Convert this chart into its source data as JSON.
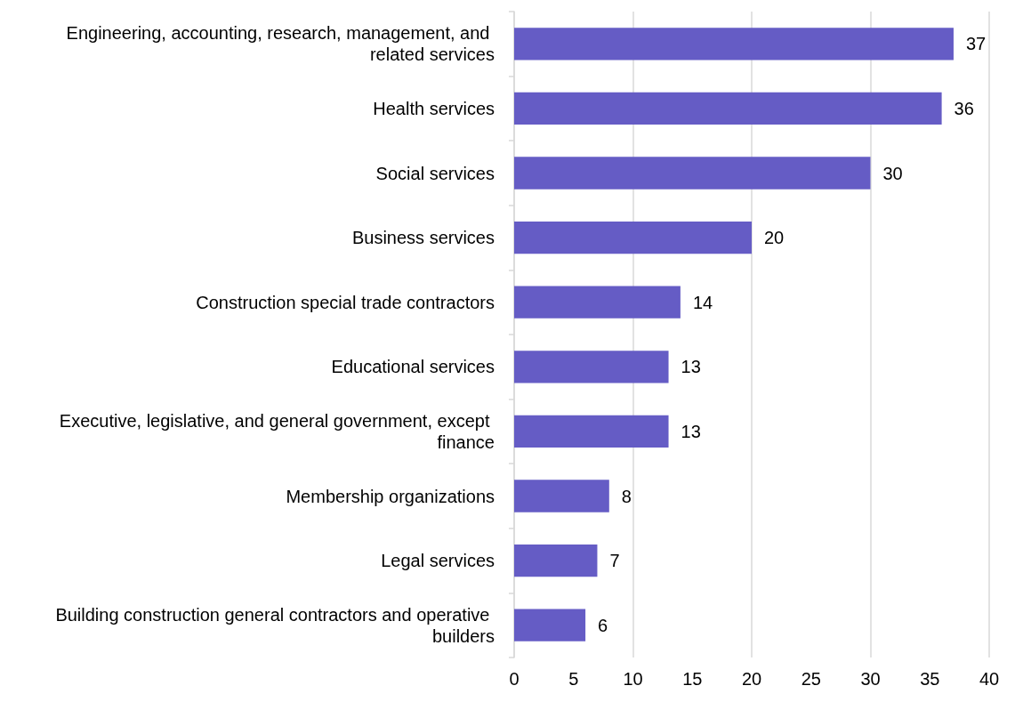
{
  "chart_data": {
    "type": "bar",
    "orientation": "horizontal",
    "categories": [
      "Engineering, accounting, research, management, and related services",
      "Health services",
      "Social services",
      "Business services",
      "Construction special trade contractors",
      "Educational services",
      "Executive, legislative, and general government, except finance",
      "Membership organizations",
      "Legal services",
      "Building construction general contractors and operative builders"
    ],
    "values": [
      37,
      36,
      30,
      20,
      14,
      13,
      13,
      8,
      7,
      6
    ],
    "color": "#655cc5",
    "xlim": [
      0,
      40
    ],
    "xticks": [
      0,
      5,
      10,
      15,
      20,
      25,
      30,
      35,
      40
    ],
    "grid": "x",
    "data_labels": true
  }
}
